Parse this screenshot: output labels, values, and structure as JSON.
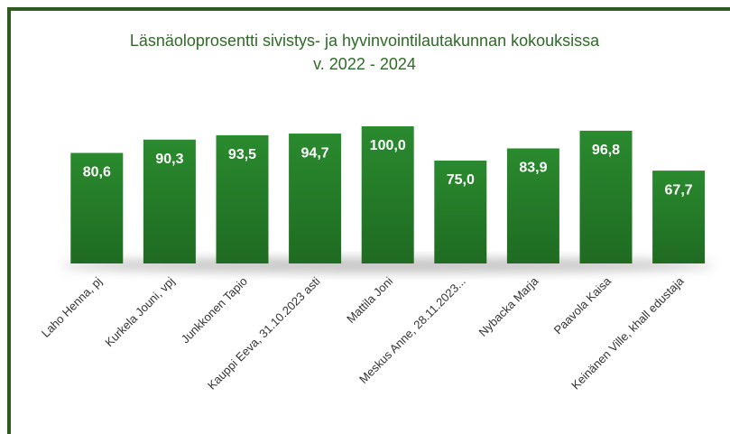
{
  "chart_data": {
    "type": "bar",
    "title": "Läsnäoloprosentti sivistys- ja hyvinvointilautakunnan kokouksissa",
    "subtitle": "v. 2022 - 2024",
    "categories": [
      "Laho Henna, pj",
      "Kurkela Jouni, vpj",
      "Junkkonen Tapio",
      "Kauppi Eeva, 31.10.2023 asti",
      "Mattila Joni",
      "Meskus Anne, 28.11.2023...",
      "Nybacka Marja",
      "Paavola Kaisa",
      "Keinänen Ville, khall edustaja"
    ],
    "values": [
      80.6,
      90.3,
      93.5,
      94.7,
      100.0,
      75.0,
      83.9,
      96.8,
      67.7
    ],
    "value_labels": [
      "80,6",
      "90,3",
      "93,5",
      "94,7",
      "100,0",
      "75,0",
      "83,9",
      "96,8",
      "67,7"
    ],
    "color": "#1f6b22",
    "ylim": [
      0,
      100
    ]
  }
}
